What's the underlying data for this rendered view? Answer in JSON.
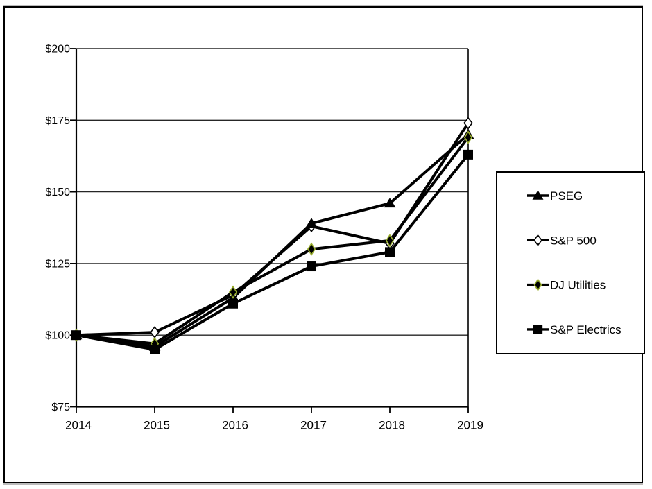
{
  "figure": {
    "background": "#ffffff",
    "border_color": "#000000",
    "title": ""
  },
  "chart_data": {
    "type": "line",
    "title": "",
    "xlabel": "",
    "ylabel": "",
    "categories": [
      2014,
      2015,
      2016,
      2017,
      2018,
      2019
    ],
    "x_tick_labels": [
      "2014",
      "2015",
      "2016",
      "2017",
      "2018",
      "2019"
    ],
    "ylim": [
      75,
      200
    ],
    "ytick_step": 25,
    "ytick_prefix": "$",
    "y_ticks": [
      75,
      100,
      125,
      150,
      175,
      200
    ],
    "y_tick_labels": [
      "$75",
      "$100",
      "$125",
      "$150",
      "$175",
      "$200"
    ],
    "grid": true,
    "grid_color": "#262626",
    "axis_color": "#000000",
    "line_width": 4,
    "legend_position": "right",
    "series": [
      {
        "name": "PSEG",
        "marker": "triangle-filled",
        "line_color": "#000000",
        "marker_fill": "#000000",
        "marker_edge": "#000000",
        "values": [
          100,
          96,
          113,
          139,
          146,
          170
        ]
      },
      {
        "name": "S&P 500",
        "marker": "diamond-open",
        "line_color": "#000000",
        "marker_fill": "#ffffff",
        "marker_edge": "#000000",
        "values": [
          100,
          101,
          114,
          138,
          132,
          174
        ]
      },
      {
        "name": "DJ Utilities",
        "marker": "diamond-filled",
        "line_color": "#000000",
        "marker_fill": "#000000",
        "marker_edge": "#9aaf2e",
        "values": [
          100,
          97,
          115,
          130,
          133,
          169
        ]
      },
      {
        "name": "S&P Electrics",
        "marker": "square-filled",
        "line_color": "#000000",
        "marker_fill": "#000000",
        "marker_edge": "#000000",
        "values": [
          100,
          95,
          111,
          124,
          129,
          163
        ]
      }
    ]
  }
}
